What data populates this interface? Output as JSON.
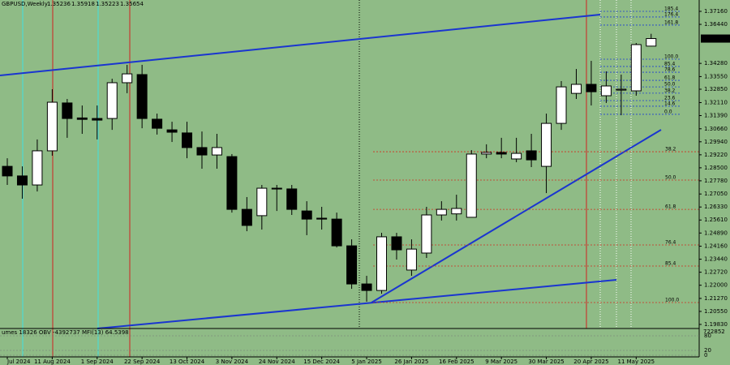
{
  "chart_data": {
    "type": "candlestick",
    "symbol": "GBPUSD,Weekly",
    "categories": [
      "Jul 2024",
      null,
      null,
      "11 Aug 2024",
      null,
      null,
      "1 Sep 2024",
      null,
      null,
      "22 Sep 2024",
      null,
      null,
      "13 Oct 2024",
      null,
      null,
      "3 Nov 2024",
      null,
      null,
      "24 Nov 2024",
      null,
      null,
      "15 Dec 2024",
      null,
      null,
      "5 Jan 2025",
      null,
      null,
      "26 Jan 2025",
      null,
      null,
      "16 Feb 2025",
      null,
      null,
      "9 Mar 2025",
      null,
      null,
      "30 Mar 2025",
      null,
      null,
      "20 Apr 2025",
      null,
      null,
      "11 May 2025",
      null
    ],
    "open": [
      1.2858,
      1.2805,
      1.2755,
      1.2944,
      1.3209,
      1.3126,
      1.3123,
      1.3123,
      1.3321,
      1.3366,
      1.3119,
      1.306,
      1.3043,
      1.2962,
      1.2921,
      1.2912,
      1.262,
      1.2585,
      1.2737,
      1.2733,
      1.2611,
      1.2571,
      1.2566,
      1.2418,
      1.2207,
      1.2171,
      1.2468,
      1.2284,
      1.2378,
      1.2589,
      1.2595,
      1.2576,
      1.2926,
      1.2935,
      1.2899,
      1.2944,
      1.2858,
      1.3096,
      1.3262,
      1.3312,
      1.3249,
      1.328,
      1.3276,
      1.35236
    ],
    "high": [
      1.2903,
      1.2858,
      1.3007,
      1.3285,
      1.3231,
      1.3195,
      1.3195,
      1.3343,
      1.342,
      1.342,
      1.315,
      1.3105,
      1.3105,
      1.3051,
      1.3038,
      1.2926,
      1.2688,
      1.2755,
      1.2755,
      1.2755,
      1.2665,
      1.2634,
      1.2602,
      1.2454,
      1.2252,
      1.249,
      1.249,
      1.2454,
      1.2634,
      1.2665,
      1.2701,
      1.2948,
      1.298,
      1.3016,
      1.3016,
      1.3038,
      1.315,
      1.333,
      1.3397,
      1.3442,
      1.3384,
      1.3366,
      1.3541,
      1.35918
    ],
    "low": [
      1.2755,
      1.2679,
      1.2719,
      1.2917,
      1.3016,
      1.3038,
      1.3007,
      1.306,
      1.3263,
      1.3069,
      1.3034,
      1.2993,
      1.2903,
      1.2845,
      1.2845,
      1.2602,
      1.2499,
      1.2508,
      1.2611,
      1.2589,
      1.2477,
      1.2508,
      1.2409,
      1.218,
      1.2109,
      1.2153,
      1.2342,
      1.2252,
      1.2351,
      1.2558,
      1.2558,
      1.2576,
      1.2903,
      1.2903,
      1.2881,
      1.2854,
      1.271,
      1.306,
      1.3231,
      1.3195,
      1.3209,
      1.3141,
      1.3249,
      1.35223
    ],
    "close": [
      1.2805,
      1.2755,
      1.2944,
      1.3213,
      1.3123,
      1.3118,
      1.3114,
      1.3321,
      1.337,
      1.3123,
      1.3069,
      1.3047,
      1.2962,
      1.2921,
      1.2962,
      1.262,
      1.2531,
      1.2737,
      1.2733,
      1.262,
      1.2566,
      1.2566,
      1.2418,
      1.2207,
      1.2171,
      1.2468,
      1.2396,
      1.24,
      1.2589,
      1.262,
      1.2625,
      1.2926,
      1.2935,
      1.2926,
      1.293,
      1.2894,
      1.3096,
      1.3298,
      1.3312,
      1.3271,
      1.3303,
      1.3285,
      1.3532,
      1.35654
    ],
    "up_color": "#ffffff",
    "down_color": "#000000",
    "ylim": [
      1.19604,
      1.37789
    ],
    "yticks": [
      {
        "value": 1.3716,
        "label": "1.37160"
      },
      {
        "value": 1.3644,
        "label": "1.36440"
      },
      {
        "value": 1.3428,
        "label": "1.34280"
      },
      {
        "value": 1.3355,
        "label": "1.33550"
      },
      {
        "value": 1.3285,
        "label": "1.32850"
      },
      {
        "value": 1.3211,
        "label": "1.32110"
      },
      {
        "value": 1.3139,
        "label": "1.31390"
      },
      {
        "value": 1.3066,
        "label": "1.30660"
      },
      {
        "value": 1.2994,
        "label": "1.29940"
      },
      {
        "value": 1.2922,
        "label": "1.29220"
      },
      {
        "value": 1.285,
        "label": "1.28500"
      },
      {
        "value": 1.2778,
        "label": "1.27780"
      },
      {
        "value": 1.2705,
        "label": "1.27050"
      },
      {
        "value": 1.2633,
        "label": "1.26330"
      },
      {
        "value": 1.2561,
        "label": "1.25610"
      },
      {
        "value": 1.2489,
        "label": "1.24890"
      },
      {
        "value": 1.2416,
        "label": "1.24160"
      },
      {
        "value": 1.2344,
        "label": "1.23440"
      },
      {
        "value": 1.2272,
        "label": "1.22720"
      },
      {
        "value": 1.22,
        "label": "1.22000"
      },
      {
        "value": 1.2127,
        "label": "1.21270"
      },
      {
        "value": 1.2055,
        "label": "1.20550"
      },
      {
        "value": 1.1983,
        "label": "1.19830"
      }
    ],
    "fib_levels_recent": [
      {
        "label": "185.4",
        "value": 1.3716
      },
      {
        "label": "176.4",
        "value": 1.3685
      },
      {
        "label": "161.8",
        "value": 1.364
      },
      {
        "label": "100.0",
        "value": 1.3451
      },
      {
        "label": "85.4",
        "value": 1.3411
      },
      {
        "label": "78.6",
        "value": 1.3379
      },
      {
        "label": "61.8",
        "value": 1.3334
      },
      {
        "label": "50.0",
        "value": 1.3298
      },
      {
        "label": "38.2",
        "value": 1.3263
      },
      {
        "label": "23.6",
        "value": 1.3222
      },
      {
        "label": "14.6",
        "value": 1.3191
      },
      {
        "label": "0.0",
        "value": 1.3146
      }
    ],
    "fib_color_recent": "#1f3fd0",
    "fib_levels_main": [
      {
        "label": "38.2",
        "value": 1.2939
      },
      {
        "label": "50.0",
        "value": 1.2782
      },
      {
        "label": "61.8",
        "value": 1.262
      },
      {
        "label": "76.4",
        "value": 1.2423
      },
      {
        "label": "85.4",
        "value": 1.2306
      },
      {
        "label": "100.0",
        "value": 1.2104
      }
    ],
    "fib_color_main": "#d03020",
    "indicator": {
      "text": "umes 18326  OBV -4392737  MFI(13) 64.5398",
      "scale_label": "722852",
      "ylim": [
        0,
        100
      ],
      "yticks": [
        80,
        20,
        0
      ]
    }
  }
}
